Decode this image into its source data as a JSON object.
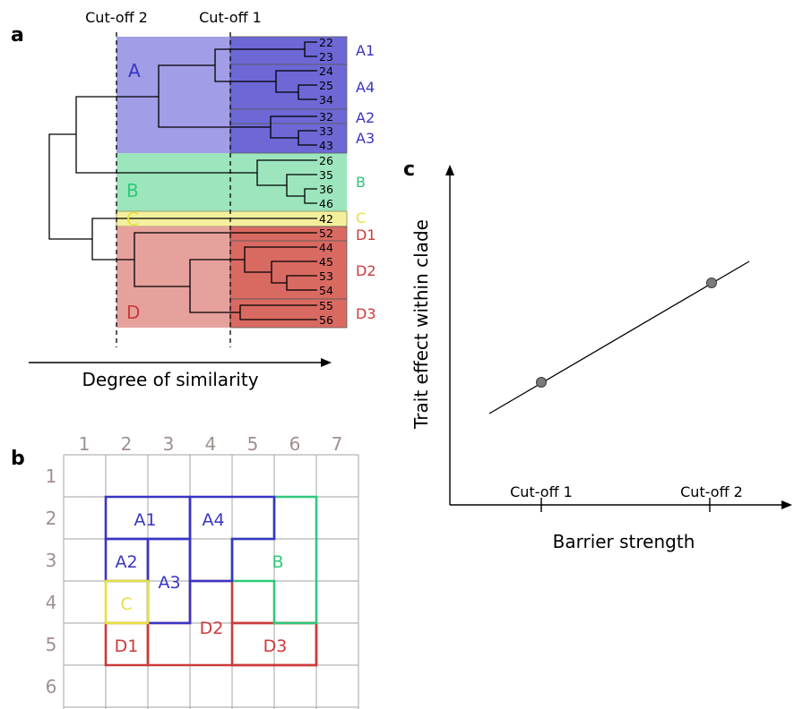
{
  "panels": {
    "a": "a",
    "b": "b",
    "c": "c"
  },
  "colors": {
    "A": "#3a34c4",
    "B": "#2ec87a",
    "C": "#e6e040",
    "D": "#cc3a3a",
    "grid_num": "#a09090",
    "point": "#7a7a7a"
  },
  "panel_a": {
    "cutoff1": "Cut-off 1",
    "cutoff2": "Cut-off 2",
    "axis_label": "Degree of similarity",
    "clades": {
      "A": "A",
      "B": "B",
      "C": "C",
      "D": "D"
    },
    "leaves": [
      "22",
      "23",
      "24",
      "25",
      "34",
      "32",
      "33",
      "43",
      "26",
      "35",
      "36",
      "46",
      "42",
      "52",
      "44",
      "45",
      "53",
      "54",
      "55",
      "56"
    ],
    "subclades": {
      "A1": "A1",
      "A4": "A4",
      "A2": "A2",
      "A3": "A3",
      "B": "B",
      "C": "C",
      "D1": "D1",
      "D2": "D2",
      "D3": "D3"
    }
  },
  "panel_b": {
    "columns": [
      "1",
      "2",
      "3",
      "4",
      "5",
      "6",
      "7"
    ],
    "rows": [
      "1",
      "2",
      "3",
      "4",
      "5",
      "6"
    ],
    "regions": {
      "A1": "A1",
      "A4": "A4",
      "A2": "A2",
      "A3": "A3",
      "B": "B",
      "C": "C",
      "D1": "D1",
      "D2": "D2",
      "D3": "D3"
    }
  },
  "panel_c": {
    "ylabel": "Trait effect within clade",
    "xlabel": "Barrier strength",
    "ticks": [
      "Cut-off 1",
      "Cut-off 2"
    ]
  }
}
